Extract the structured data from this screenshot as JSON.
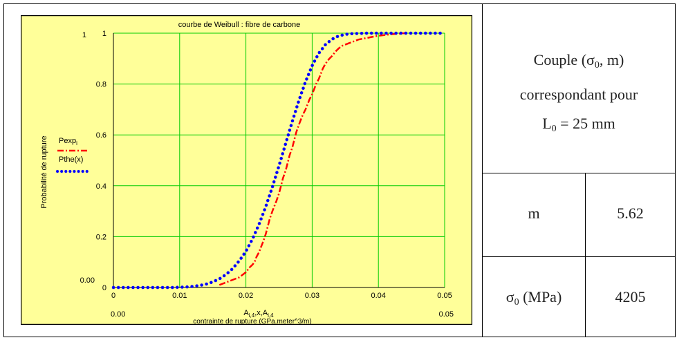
{
  "chart_data": {
    "type": "line",
    "title": "courbe de Weibull : fibre de carbone",
    "xlabel": "contrainte de rupture  (GPa.meter^3/m)",
    "x_expression": "Ai,4,x,Ai,4",
    "ylabel": "Probabilité de rupture",
    "xlim": [
      0,
      0.05
    ],
    "ylim": [
      0,
      1
    ],
    "x_ticks": [
      "0",
      "0.01",
      "0.02",
      "0.03",
      "0.04",
      "0.05"
    ],
    "y_ticks": [
      "0",
      "0.2",
      "0.4",
      "0.6",
      "0.8",
      "1"
    ],
    "corner_labels": {
      "y_top": "1",
      "y_bottom": "0.00",
      "x_left": "0.00",
      "x_right": "0.05"
    },
    "grid": true,
    "legend_position": "left",
    "series": [
      {
        "name": "Pexpi",
        "color": "#ff0000",
        "style": "dash-dot",
        "x": [
          0.016,
          0.0165,
          0.017,
          0.0175,
          0.018,
          0.0185,
          0.019,
          0.0195,
          0.02,
          0.0203,
          0.0206,
          0.021,
          0.0213,
          0.0216,
          0.022,
          0.0223,
          0.0226,
          0.023,
          0.0233,
          0.0236,
          0.024,
          0.0243,
          0.0246,
          0.025,
          0.0253,
          0.0256,
          0.026,
          0.0263,
          0.0266,
          0.027,
          0.0273,
          0.0276,
          0.028,
          0.0283,
          0.0286,
          0.029,
          0.0293,
          0.0296,
          0.03,
          0.0303,
          0.0306,
          0.031,
          0.0313,
          0.0316,
          0.032,
          0.0323,
          0.0326,
          0.033,
          0.0333,
          0.0336,
          0.034,
          0.0345,
          0.035,
          0.0355,
          0.036,
          0.0365,
          0.037,
          0.038,
          0.039,
          0.04,
          0.041,
          0.042,
          0.043,
          0.044
        ],
        "values": [
          0.01,
          0.015,
          0.02,
          0.025,
          0.03,
          0.035,
          0.04,
          0.05,
          0.06,
          0.07,
          0.08,
          0.09,
          0.1,
          0.12,
          0.14,
          0.16,
          0.18,
          0.21,
          0.24,
          0.27,
          0.3,
          0.32,
          0.34,
          0.37,
          0.4,
          0.43,
          0.46,
          0.49,
          0.52,
          0.55,
          0.58,
          0.61,
          0.64,
          0.66,
          0.68,
          0.7,
          0.72,
          0.74,
          0.76,
          0.78,
          0.8,
          0.82,
          0.84,
          0.86,
          0.88,
          0.89,
          0.9,
          0.91,
          0.92,
          0.93,
          0.94,
          0.95,
          0.955,
          0.96,
          0.965,
          0.97,
          0.975,
          0.98,
          0.985,
          0.99,
          0.993,
          0.996,
          0.998,
          1.0
        ]
      },
      {
        "name": "Pthe(x)",
        "color": "#0000ff",
        "style": "dotted",
        "x": [
          0.0,
          0.001,
          0.002,
          0.003,
          0.004,
          0.005,
          0.006,
          0.007,
          0.008,
          0.009,
          0.01,
          0.011,
          0.012,
          0.013,
          0.014,
          0.015,
          0.016,
          0.017,
          0.018,
          0.019,
          0.02,
          0.021,
          0.022,
          0.023,
          0.024,
          0.025,
          0.026,
          0.027,
          0.028,
          0.029,
          0.03,
          0.031,
          0.032,
          0.033,
          0.034,
          0.035,
          0.036,
          0.037,
          0.038,
          0.039,
          0.04,
          0.041,
          0.042,
          0.043,
          0.044,
          0.045,
          0.046,
          0.047,
          0.048,
          0.049,
          0.05
        ],
        "values": [
          0.0,
          0.0,
          0.0,
          0.0,
          0.0,
          0.0,
          0.0,
          0.0,
          0.0,
          0.0,
          0.001,
          0.002,
          0.004,
          0.008,
          0.013,
          0.022,
          0.034,
          0.051,
          0.074,
          0.105,
          0.142,
          0.191,
          0.25,
          0.318,
          0.395,
          0.479,
          0.566,
          0.653,
          0.735,
          0.809,
          0.872,
          0.921,
          0.955,
          0.976,
          0.989,
          0.995,
          0.998,
          0.999,
          1.0,
          1.0,
          1.0,
          1.0,
          1.0,
          1.0,
          1.0,
          1.0,
          1.0,
          1.0,
          1.0,
          1.0,
          1.0
        ]
      }
    ]
  },
  "table": {
    "header": "Couple (σ0, m) correspondant pour L0 = 25 mm",
    "header_lines": [
      "Couple (σ",
      "0",
      ", m)",
      "correspondant pour",
      "L",
      "0",
      " = 25 mm"
    ],
    "rows": [
      {
        "label": "m",
        "value": "5.62"
      },
      {
        "label_main": "σ",
        "label_sub": "0",
        "label_rest": " (MPa)",
        "value": "4205"
      }
    ]
  },
  "colors": {
    "chart_bg": "#ffff99",
    "plot_bg": "#ffff99",
    "grid": "#00cc00",
    "frame": "#000000"
  }
}
